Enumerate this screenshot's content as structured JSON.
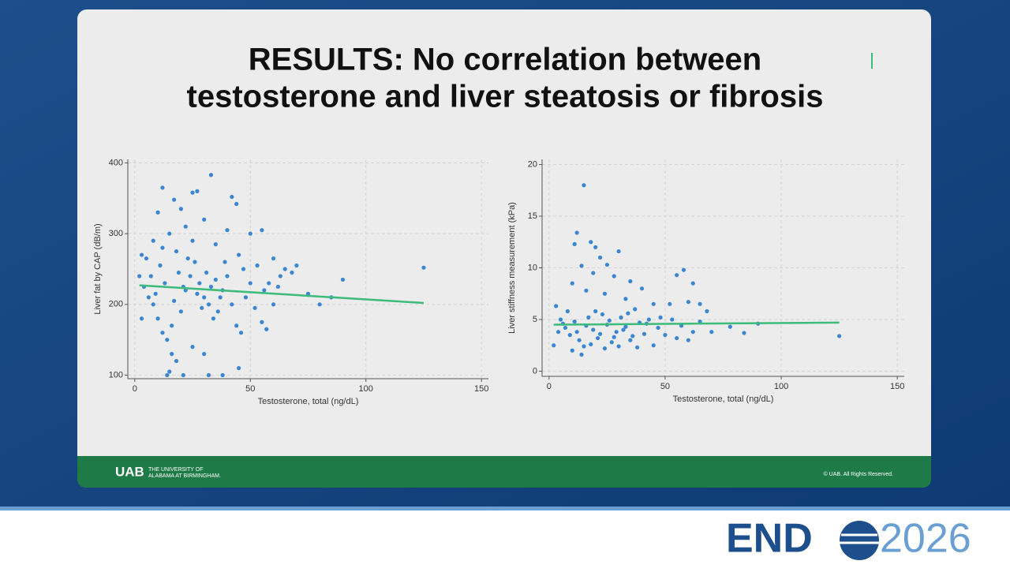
{
  "slide": {
    "title_lines": [
      "RESULTS: No correlation between",
      "testosterone and liver steatosis or fibrosis"
    ],
    "logo_mark": "UAB",
    "logo_text_lines": [
      "THE UNIVERSITY OF",
      "ALABAMA AT BIRMINGHAM."
    ],
    "copyright": "© UAB. All Rights Reserved."
  },
  "event": {
    "name": "END",
    "year": "2026"
  },
  "chart_data": [
    {
      "type": "scatter",
      "xlabel": "Testosterone, total (ng/dL)",
      "ylabel": "Liver fat by CAP (dB/m)",
      "xlim": [
        -3,
        153
      ],
      "ylim": [
        95,
        405
      ],
      "xticks": [
        0,
        50,
        100,
        150
      ],
      "yticks": [
        100,
        200,
        300,
        400
      ],
      "grid": true,
      "series": [
        {
          "color": "#3a86d0",
          "x": [
            12,
            33,
            25,
            27,
            42,
            44,
            10,
            17,
            20,
            30,
            40,
            55,
            8,
            15,
            22,
            5,
            3,
            12,
            18,
            25,
            35,
            45,
            50,
            60,
            65,
            68,
            70,
            58,
            62,
            75,
            80,
            85,
            90,
            125,
            2,
            4,
            6,
            8,
            10,
            12,
            14,
            16,
            20,
            22,
            24,
            26,
            28,
            30,
            32,
            34,
            36,
            38,
            40,
            42,
            44,
            46,
            48,
            50,
            52,
            55,
            57,
            60,
            14,
            15,
            21,
            32,
            38,
            45,
            18,
            25,
            30,
            16,
            3,
            7,
            11,
            19,
            23,
            27,
            31,
            35,
            39,
            9,
            13,
            17,
            21,
            29,
            33,
            37,
            47,
            53,
            56,
            63
          ],
          "values": [
            365,
            383,
            358,
            360,
            352,
            342,
            330,
            348,
            335,
            320,
            305,
            305,
            290,
            300,
            310,
            265,
            270,
            280,
            275,
            290,
            285,
            270,
            300,
            265,
            250,
            245,
            255,
            230,
            225,
            215,
            200,
            210,
            235,
            252,
            240,
            225,
            210,
            200,
            180,
            160,
            150,
            170,
            190,
            220,
            240,
            260,
            230,
            210,
            200,
            180,
            190,
            220,
            240,
            200,
            170,
            160,
            210,
            230,
            195,
            175,
            165,
            200,
            100,
            105,
            100,
            100,
            100,
            110,
            120,
            140,
            130,
            130,
            180,
            240,
            255,
            245,
            265,
            215,
            245,
            235,
            260,
            215,
            230,
            205,
            225,
            195,
            225,
            210,
            250,
            255,
            220,
            240
          ]
        }
      ],
      "fit": {
        "color": "#3dbb7a",
        "x": [
          2,
          125
        ],
        "values": [
          227,
          202
        ]
      }
    },
    {
      "type": "scatter",
      "xlabel": "Testosterone, total (ng/dL)",
      "ylabel": "Liver stiffness measurement (kPa)",
      "xlim": [
        -3,
        153
      ],
      "ylim": [
        -0.5,
        20.5
      ],
      "xticks": [
        0,
        50,
        100,
        150
      ],
      "yticks": [
        0,
        5,
        10,
        15,
        20
      ],
      "grid": true,
      "series": [
        {
          "color": "#3a86d0",
          "x": [
            15,
            12,
            18,
            11,
            20,
            22,
            30,
            25,
            14,
            19,
            28,
            35,
            40,
            58,
            55,
            62,
            10,
            16,
            24,
            33,
            45,
            52,
            60,
            65,
            68,
            3,
            5,
            7,
            9,
            11,
            13,
            15,
            17,
            19,
            21,
            23,
            25,
            27,
            29,
            31,
            33,
            35,
            37,
            39,
            41,
            43,
            45,
            47,
            50,
            53,
            55,
            57,
            60,
            62,
            65,
            70,
            78,
            84,
            90,
            125,
            2,
            4,
            6,
            8,
            10,
            12,
            14,
            16,
            18,
            20,
            22,
            24,
            26,
            28,
            30,
            32,
            34,
            36,
            38,
            42,
            48
          ],
          "values": [
            18,
            13.4,
            12.5,
            12.3,
            12,
            11,
            11.6,
            10.3,
            10.2,
            9.5,
            9.2,
            8.7,
            8,
            9.8,
            9.3,
            8.5,
            8.5,
            7.8,
            7.5,
            7,
            6.5,
            6.5,
            6.7,
            6.5,
            5.8,
            6.3,
            5,
            4.2,
            3.5,
            4.8,
            3,
            2.4,
            5.2,
            4,
            3.2,
            5.5,
            4.5,
            2.8,
            3.8,
            5.2,
            4.3,
            3,
            6,
            4.7,
            3.6,
            5,
            2.5,
            4.2,
            3.5,
            5,
            3.2,
            4.4,
            3,
            3.8,
            4.8,
            3.8,
            4.3,
            3.7,
            4.6,
            3.4,
            2.5,
            3.8,
            4.6,
            5.8,
            2,
            3.8,
            1.6,
            4.4,
            2.6,
            5.8,
            3.6,
            2.2,
            4.9,
            3.3,
            2.4,
            4,
            5.6,
            3.4,
            2.3,
            4.6,
            5.2
          ]
        }
      ],
      "fit": {
        "color": "#3dbb7a",
        "x": [
          2,
          125
        ],
        "values": [
          4.5,
          4.7
        ]
      }
    }
  ]
}
